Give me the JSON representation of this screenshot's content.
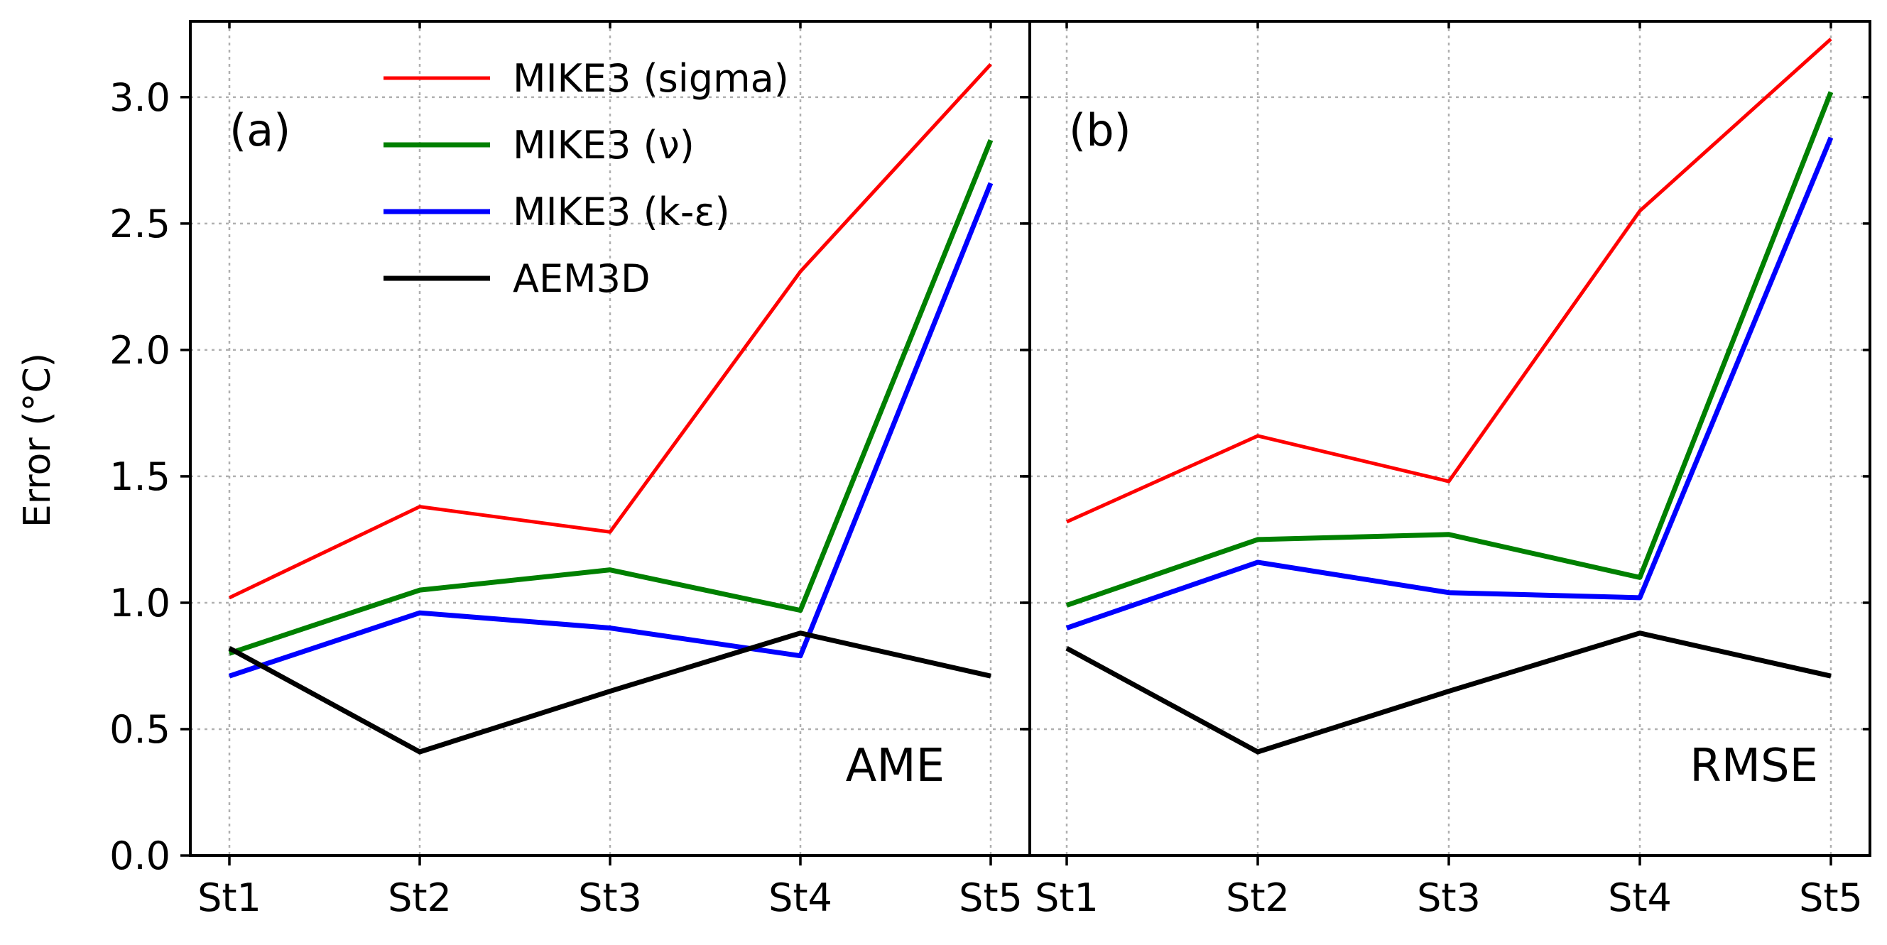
{
  "chart_data": [
    {
      "type": "line",
      "panel_label": "(a)",
      "metric": "AME",
      "ylabel": "Error (°C)",
      "ylim": [
        0,
        3.3
      ],
      "yticks": [
        "0.0",
        "0.5",
        "1.0",
        "1.5",
        "2.0",
        "2.5",
        "3.0"
      ],
      "categories": [
        "St1",
        "St2",
        "St3",
        "St4",
        "St5"
      ],
      "grid": true,
      "legend": "top-left",
      "series": [
        {
          "name": "MIKE3 (sigma)",
          "color": "#ff0000",
          "values": [
            1.02,
            1.38,
            1.28,
            2.31,
            3.13
          ]
        },
        {
          "name": "MIKE3 (ν)",
          "color": "#008000",
          "values": [
            0.8,
            1.05,
            1.13,
            0.97,
            2.83
          ]
        },
        {
          "name": "MIKE3 (k-ε)",
          "color": "#0000ff",
          "values": [
            0.71,
            0.96,
            0.9,
            0.79,
            2.66
          ]
        },
        {
          "name": "AEM3D",
          "color": "#000000",
          "values": [
            0.82,
            0.41,
            0.65,
            0.88,
            0.71
          ]
        }
      ]
    },
    {
      "type": "line",
      "panel_label": "(b)",
      "metric": "RMSE",
      "ylim": [
        0,
        3.3
      ],
      "categories": [
        "St1",
        "St2",
        "St3",
        "St4",
        "St5"
      ],
      "grid": true,
      "series": [
        {
          "name": "MIKE3 (sigma)",
          "color": "#ff0000",
          "values": [
            1.32,
            1.66,
            1.48,
            2.55,
            3.23
          ]
        },
        {
          "name": "MIKE3 (ν)",
          "color": "#008000",
          "values": [
            0.99,
            1.25,
            1.27,
            1.1,
            3.02
          ]
        },
        {
          "name": "MIKE3 (k-ε)",
          "color": "#0000ff",
          "values": [
            0.9,
            1.16,
            1.04,
            1.02,
            2.84
          ]
        },
        {
          "name": "AEM3D",
          "color": "#000000",
          "values": [
            0.82,
            0.41,
            0.65,
            0.88,
            0.71
          ]
        }
      ]
    }
  ]
}
